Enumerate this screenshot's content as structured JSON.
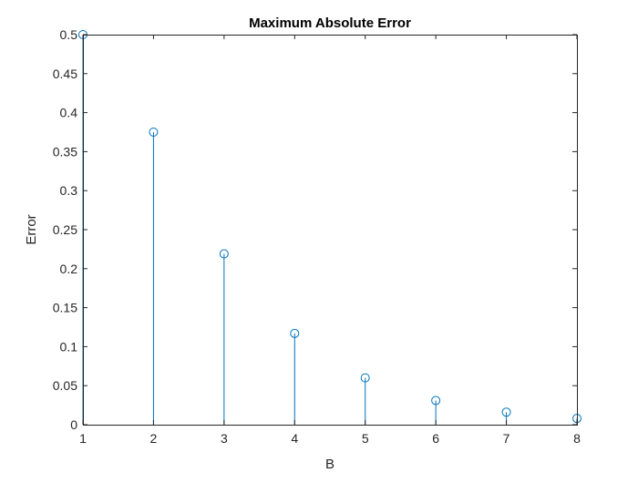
{
  "chart_data": {
    "type": "stem",
    "title": "Maximum Absolute Error",
    "xlabel": "B",
    "ylabel": "Error",
    "xlim": [
      1,
      8
    ],
    "ylim": [
      0,
      0.5
    ],
    "xticks": [
      "1",
      "2",
      "3",
      "4",
      "5",
      "6",
      "7",
      "8"
    ],
    "yticks": [
      "0",
      "0.05",
      "0.1",
      "0.15",
      "0.2",
      "0.25",
      "0.3",
      "0.35",
      "0.4",
      "0.45",
      "0.5"
    ],
    "grid": false,
    "legend": "none",
    "series_color": "#0072BD",
    "x": [
      1,
      2,
      3,
      4,
      5,
      6,
      7,
      8
    ],
    "values": [
      0.5,
      0.375,
      0.219,
      0.117,
      0.06,
      0.031,
      0.016,
      0.008
    ]
  }
}
